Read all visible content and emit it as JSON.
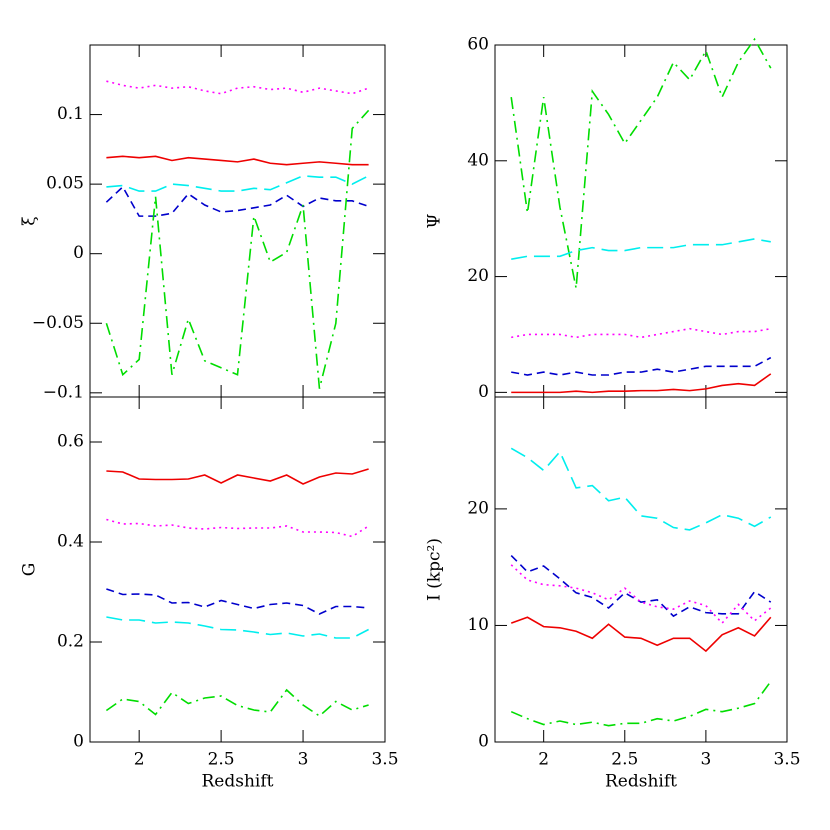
{
  "chart_data": [
    {
      "type": "line",
      "ylabel": "ξ",
      "x": [
        1.8,
        1.9,
        2.0,
        2.1,
        2.2,
        2.3,
        2.4,
        2.5,
        2.6,
        2.7,
        2.8,
        2.9,
        3.0,
        3.1,
        3.2,
        3.3,
        3.4
      ],
      "xlim": [
        1.7,
        3.5
      ],
      "xticks": [
        2,
        2.5,
        3,
        3.5
      ],
      "ylim": [
        -0.103,
        0.15
      ],
      "yticks": [
        {
          "value": -0.1,
          "label": "−0.1"
        },
        {
          "value": -0.05,
          "label": "−0.05"
        },
        0,
        0.05,
        0.1
      ],
      "series": [
        {
          "color": "#ff00ff",
          "dash": "dot",
          "values": [
            0.124,
            0.121,
            0.119,
            0.121,
            0.119,
            0.12,
            0.117,
            0.115,
            0.119,
            0.12,
            0.118,
            0.119,
            0.116,
            0.119,
            0.117,
            0.115,
            0.119
          ]
        },
        {
          "color": "#ee0000",
          "dash": "solid",
          "values": [
            0.069,
            0.07,
            0.069,
            0.07,
            0.067,
            0.069,
            0.068,
            0.067,
            0.066,
            0.068,
            0.065,
            0.064,
            0.065,
            0.066,
            0.065,
            0.064,
            0.064
          ]
        },
        {
          "color": "#00eeee",
          "dash": "longdash",
          "values": [
            0.048,
            0.049,
            0.045,
            0.045,
            0.05,
            0.049,
            0.047,
            0.045,
            0.045,
            0.047,
            0.046,
            0.051,
            0.056,
            0.055,
            0.055,
            0.05,
            0.056
          ]
        },
        {
          "color": "#0000cc",
          "dash": "dash",
          "values": [
            0.037,
            0.048,
            0.027,
            0.027,
            0.029,
            0.043,
            0.035,
            0.03,
            0.031,
            0.033,
            0.035,
            0.042,
            0.034,
            0.04,
            0.038,
            0.038,
            0.034
          ]
        },
        {
          "color": "#00dd00",
          "dash": "dashdot",
          "values": [
            -0.05,
            -0.087,
            -0.076,
            0.041,
            -0.087,
            -0.047,
            -0.077,
            -0.082,
            -0.087,
            0.027,
            -0.006,
            0.001,
            0.035,
            -0.097,
            -0.05,
            0.09,
            0.103
          ]
        }
      ]
    },
    {
      "type": "line",
      "ylabel": "Ψ",
      "x": [
        1.8,
        1.9,
        2.0,
        2.1,
        2.2,
        2.3,
        2.4,
        2.5,
        2.6,
        2.7,
        2.8,
        2.9,
        3.0,
        3.1,
        3.2,
        3.3,
        3.4
      ],
      "xlim": [
        1.7,
        3.5
      ],
      "xticks": [
        2,
        2.5,
        3,
        3.5
      ],
      "ylim": [
        -0.8,
        60
      ],
      "yticks": [
        0,
        20,
        40,
        60
      ],
      "series": [
        {
          "color": "#00dd00",
          "dash": "dashdot",
          "values": [
            51,
            31,
            51,
            32,
            18,
            52,
            48,
            43,
            47,
            51,
            57,
            54,
            59,
            51,
            57,
            61,
            56
          ]
        },
        {
          "color": "#00eeee",
          "dash": "longdash",
          "values": [
            23,
            23.5,
            23.5,
            23.5,
            24.5,
            25,
            24.5,
            24.5,
            25,
            25,
            25,
            25.5,
            25.5,
            25.5,
            26,
            26.5,
            26
          ]
        },
        {
          "color": "#ff00ff",
          "dash": "dot",
          "values": [
            9.5,
            10,
            10,
            10,
            9.5,
            10,
            10,
            10,
            9.5,
            10,
            10.5,
            11,
            10.5,
            10,
            10.5,
            10.5,
            11
          ]
        },
        {
          "color": "#0000cc",
          "dash": "dash",
          "values": [
            3.5,
            3,
            3.5,
            3,
            3.5,
            3,
            3,
            3.5,
            3.5,
            4,
            3.5,
            4,
            4.5,
            4.5,
            4.5,
            4.5,
            6
          ]
        },
        {
          "color": "#ee0000",
          "dash": "solid",
          "values": [
            0,
            0,
            0,
            0,
            0.2,
            0,
            0.2,
            0.2,
            0.3,
            0.3,
            0.5,
            0.3,
            0.6,
            1.2,
            1.5,
            1.2,
            3.2
          ]
        }
      ]
    },
    {
      "type": "line",
      "ylabel": "G",
      "xlabel": "Redshift",
      "x": [
        1.8,
        1.9,
        2.0,
        2.1,
        2.2,
        2.3,
        2.4,
        2.5,
        2.6,
        2.7,
        2.8,
        2.9,
        3.0,
        3.1,
        3.2,
        3.3,
        3.4
      ],
      "xlim": [
        1.7,
        3.5
      ],
      "xticks": [
        2,
        2.5,
        3,
        3.5
      ],
      "ylim": [
        0,
        0.69
      ],
      "yticks": [
        0,
        0.2,
        0.4,
        0.6
      ],
      "series": [
        {
          "color": "#ee0000",
          "dash": "solid",
          "values": [
            0.542,
            0.54,
            0.526,
            0.525,
            0.525,
            0.526,
            0.534,
            0.518,
            0.534,
            0.528,
            0.522,
            0.534,
            0.516,
            0.53,
            0.538,
            0.536,
            0.546
          ]
        },
        {
          "color": "#ff00ff",
          "dash": "dot",
          "values": [
            0.445,
            0.436,
            0.437,
            0.432,
            0.434,
            0.428,
            0.426,
            0.429,
            0.427,
            0.428,
            0.428,
            0.432,
            0.42,
            0.42,
            0.419,
            0.411,
            0.432
          ]
        },
        {
          "color": "#0000cc",
          "dash": "dash",
          "values": [
            0.306,
            0.295,
            0.296,
            0.294,
            0.278,
            0.279,
            0.27,
            0.283,
            0.275,
            0.267,
            0.275,
            0.278,
            0.273,
            0.256,
            0.271,
            0.271,
            0.268
          ]
        },
        {
          "color": "#00eeee",
          "dash": "longdash",
          "values": [
            0.25,
            0.244,
            0.244,
            0.238,
            0.24,
            0.238,
            0.232,
            0.225,
            0.224,
            0.22,
            0.215,
            0.218,
            0.212,
            0.216,
            0.208,
            0.208,
            0.225
          ]
        },
        {
          "color": "#00dd00",
          "dash": "dashdot",
          "values": [
            0.063,
            0.086,
            0.081,
            0.055,
            0.099,
            0.077,
            0.088,
            0.092,
            0.073,
            0.064,
            0.06,
            0.104,
            0.074,
            0.052,
            0.081,
            0.064,
            0.074
          ]
        }
      ]
    },
    {
      "type": "line",
      "ylabel": "I (kpc²)",
      "xlabel": "Redshift",
      "x": [
        1.8,
        1.9,
        2.0,
        2.1,
        2.2,
        2.3,
        2.4,
        2.5,
        2.6,
        2.7,
        2.8,
        2.9,
        3.0,
        3.1,
        3.2,
        3.3,
        3.4
      ],
      "xlim": [
        1.7,
        3.5
      ],
      "xticks": [
        2,
        2.5,
        3,
        3.5
      ],
      "ylim": [
        0,
        29.6
      ],
      "yticks": [
        0,
        10,
        20
      ],
      "series": [
        {
          "color": "#00eeee",
          "dash": "longdash",
          "values": [
            25.2,
            24.4,
            23.3,
            24.9,
            21.8,
            22,
            20.7,
            21,
            19.4,
            19.2,
            18.4,
            18.2,
            18.8,
            19.5,
            19.2,
            18.5,
            19.3
          ]
        },
        {
          "color": "#0000cc",
          "dash": "dash",
          "values": [
            16,
            14.6,
            15.1,
            14,
            12.8,
            12.4,
            11.5,
            12.8,
            12,
            12.2,
            10.8,
            11.6,
            11.1,
            11,
            11,
            12.9,
            12
          ]
        },
        {
          "color": "#ff00ff",
          "dash": "dot",
          "values": [
            15.2,
            13.9,
            13.5,
            13.4,
            13.2,
            12.8,
            12.2,
            13.2,
            12,
            11.6,
            11.4,
            12.1,
            11.7,
            10.2,
            11.8,
            10.4,
            11.5
          ]
        },
        {
          "color": "#ee0000",
          "dash": "solid",
          "values": [
            10.2,
            10.7,
            9.9,
            9.8,
            9.5,
            8.9,
            10.1,
            9,
            8.9,
            8.3,
            8.9,
            8.9,
            7.8,
            9.2,
            9.8,
            9.1,
            10.7
          ]
        },
        {
          "color": "#00dd00",
          "dash": "dashdot",
          "values": [
            2.6,
            2,
            1.5,
            1.8,
            1.5,
            1.7,
            1.4,
            1.6,
            1.6,
            2,
            1.8,
            2.2,
            2.8,
            2.6,
            2.9,
            3.3,
            5.2
          ]
        }
      ]
    }
  ]
}
